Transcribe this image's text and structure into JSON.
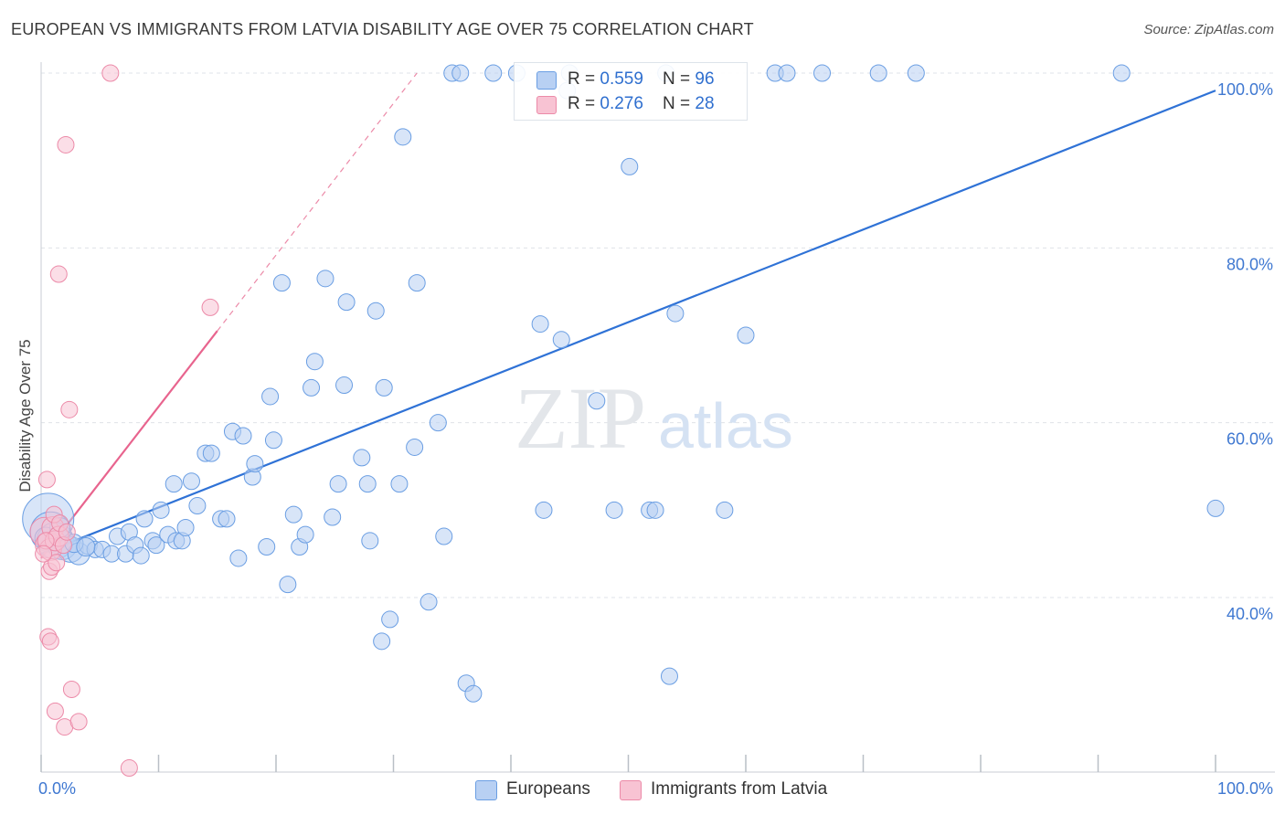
{
  "title": "EUROPEAN VS IMMIGRANTS FROM LATVIA DISABILITY AGE OVER 75 CORRELATION CHART",
  "source": "Source: ZipAtlas.com",
  "colors": {
    "blue_fill": "#b8d0f3",
    "blue_stroke": "#6a9ee3",
    "blue_line": "#2f72d6",
    "pink_fill": "#f8c3d3",
    "pink_stroke": "#ec8aa8",
    "pink_line": "#e8648e",
    "grid": "#dfe3e8",
    "axis_text": "#3f78d1"
  },
  "legend_top": [
    {
      "r_label": "R = ",
      "r_value": "0.559",
      "n_label": "N = ",
      "n_value": "96"
    },
    {
      "r_label": "R = ",
      "r_value": "0.276",
      "n_label": "N = ",
      "n_value": "28"
    }
  ],
  "legend_bottom": [
    "Europeans",
    "Immigrants from Latvia"
  ],
  "watermark": {
    "zip": "ZIP",
    "atlas": "atlas"
  },
  "chart_data": {
    "type": "scatter",
    "title": "EUROPEAN VS IMMIGRANTS FROM LATVIA DISABILITY AGE OVER 75 CORRELATION CHART",
    "xlabel": "",
    "ylabel": "Disability Age Over 75",
    "xlim": [
      0,
      100
    ],
    "ylim": [
      20,
      102
    ],
    "x_tick_labels": [
      "0.0%",
      "100.0%"
    ],
    "y_ticks": [
      40,
      60,
      80,
      100
    ],
    "y_tick_labels": [
      "40.0%",
      "60.0%",
      "80.0%",
      "100.0%"
    ],
    "grid": true,
    "series": [
      {
        "name": "Europeans",
        "color": "#6a9ee3",
        "trend": {
          "x": [
            0,
            100
          ],
          "y": [
            45,
            98
          ]
        },
        "points": [
          [
            0.6,
            49,
            28
          ],
          [
            0.8,
            47.5,
            22
          ],
          [
            1.2,
            46.5,
            20
          ],
          [
            1.8,
            46,
            16
          ],
          [
            2.5,
            45.5,
            14
          ],
          [
            3.2,
            45,
            12
          ],
          [
            4,
            46,
            10
          ],
          [
            4.6,
            45.5,
            9
          ],
          [
            5.2,
            45.5,
            9
          ],
          [
            6,
            45,
            9
          ],
          [
            6.5,
            47,
            9
          ],
          [
            7.2,
            45,
            9
          ],
          [
            7.5,
            47.5,
            9
          ],
          [
            8,
            46,
            9
          ],
          [
            8.5,
            44.8,
            9
          ],
          [
            8.8,
            49,
            9
          ],
          [
            9.5,
            46.5,
            9
          ],
          [
            9.8,
            46,
            9
          ],
          [
            10.2,
            50,
            9
          ],
          [
            10.8,
            47.2,
            9
          ],
          [
            11.3,
            53,
            9
          ],
          [
            11.5,
            46.5,
            9
          ],
          [
            12,
            46.5,
            9
          ],
          [
            12.3,
            48,
            9
          ],
          [
            12.8,
            53.3,
            9
          ],
          [
            13.3,
            50.5,
            9
          ],
          [
            14,
            56.5,
            9
          ],
          [
            14.5,
            56.5,
            9
          ],
          [
            15.3,
            49,
            9
          ],
          [
            15.8,
            49,
            9
          ],
          [
            16.3,
            59,
            9
          ],
          [
            16.8,
            44.5,
            9
          ],
          [
            17.2,
            58.5,
            9
          ],
          [
            18,
            53.8,
            9
          ],
          [
            18.2,
            55.3,
            9
          ],
          [
            19.2,
            45.8,
            9
          ],
          [
            19.5,
            63,
            9
          ],
          [
            19.8,
            58,
            9
          ],
          [
            20.5,
            76,
            9
          ],
          [
            21,
            41.5,
            9
          ],
          [
            21.5,
            49.5,
            9
          ],
          [
            22,
            45.8,
            9
          ],
          [
            22.5,
            47.2,
            9
          ],
          [
            23,
            64,
            9
          ],
          [
            23.3,
            67,
            9
          ],
          [
            24.2,
            76.5,
            9
          ],
          [
            24.8,
            49.2,
            9
          ],
          [
            25.3,
            53,
            9
          ],
          [
            25.8,
            64.3,
            9
          ],
          [
            26,
            73.8,
            9
          ],
          [
            27.3,
            56,
            9
          ],
          [
            27.8,
            53,
            9
          ],
          [
            28,
            46.5,
            9
          ],
          [
            28.5,
            72.8,
            9
          ],
          [
            29,
            35,
            9
          ],
          [
            29.2,
            64,
            9
          ],
          [
            29.7,
            37.5,
            9
          ],
          [
            30.5,
            53,
            9
          ],
          [
            30.8,
            92.7,
            9
          ],
          [
            31.8,
            57.2,
            9
          ],
          [
            32,
            76,
            9
          ],
          [
            33,
            39.5,
            9
          ],
          [
            33.8,
            60,
            9
          ],
          [
            34.3,
            47,
            9
          ],
          [
            35,
            100,
            9
          ],
          [
            35.7,
            100,
            9
          ],
          [
            36.2,
            30.2,
            9
          ],
          [
            36.8,
            29,
            9
          ],
          [
            38.5,
            100,
            9
          ],
          [
            40.5,
            100,
            9
          ],
          [
            42.5,
            71.3,
            9
          ],
          [
            42.8,
            50,
            9
          ],
          [
            44.3,
            69.5,
            9
          ],
          [
            44.8,
            98,
            9
          ],
          [
            45,
            100,
            9
          ],
          [
            47.3,
            62.5,
            9
          ],
          [
            48.8,
            50,
            9
          ],
          [
            50.1,
            89.3,
            9
          ],
          [
            51.8,
            50,
            9
          ],
          [
            52.3,
            50,
            9
          ],
          [
            53.2,
            100,
            9
          ],
          [
            53.5,
            31,
            9
          ],
          [
            54,
            72.5,
            9
          ],
          [
            58.2,
            50,
            9
          ],
          [
            60,
            70,
            9
          ],
          [
            62.5,
            100,
            9
          ],
          [
            63.5,
            100,
            9
          ],
          [
            66.5,
            100,
            9
          ],
          [
            71.3,
            100,
            9
          ],
          [
            74.5,
            100,
            9
          ],
          [
            92,
            100,
            9
          ],
          [
            100,
            50.2,
            9
          ],
          [
            0.4,
            46.8,
            12
          ],
          [
            1.6,
            48,
            11
          ],
          [
            2.8,
            46.2,
            10
          ],
          [
            3.8,
            45.8,
            10
          ]
        ]
      },
      {
        "name": "Immigrants from Latvia",
        "color": "#ec8aa8",
        "trend": {
          "x": [
            0,
            15
          ],
          "y": [
            44.5,
            70.5
          ]
        },
        "trend_extension": {
          "x": [
            15,
            32
          ],
          "y": [
            70.5,
            100
          ]
        },
        "points": [
          [
            0.3,
            47.5,
            16
          ],
          [
            0.6,
            46,
            14
          ],
          [
            0.8,
            45.5,
            12
          ],
          [
            1,
            48,
            12
          ],
          [
            1.2,
            46.5,
            11
          ],
          [
            1.5,
            47,
            11
          ],
          [
            0.5,
            53.5,
            9
          ],
          [
            0.7,
            43,
            9
          ],
          [
            0.9,
            43.5,
            9
          ],
          [
            1.1,
            49.5,
            9
          ],
          [
            1.3,
            44,
            9
          ],
          [
            1.6,
            48.5,
            9
          ],
          [
            0.6,
            35.5,
            9
          ],
          [
            0.8,
            35,
            9
          ],
          [
            1.2,
            27,
            9
          ],
          [
            2,
            25.2,
            9
          ],
          [
            2.6,
            29.5,
            9
          ],
          [
            3.2,
            25.8,
            9
          ],
          [
            1.5,
            77,
            9
          ],
          [
            2.1,
            91.8,
            9
          ],
          [
            2.4,
            61.5,
            9
          ],
          [
            5.9,
            100,
            9
          ],
          [
            7.5,
            20.5,
            9
          ],
          [
            14.4,
            73.2,
            9
          ],
          [
            0.4,
            46.5,
            9
          ],
          [
            1.9,
            46,
            9
          ],
          [
            2.2,
            47.5,
            9
          ],
          [
            0.2,
            45,
            9
          ]
        ]
      }
    ]
  }
}
